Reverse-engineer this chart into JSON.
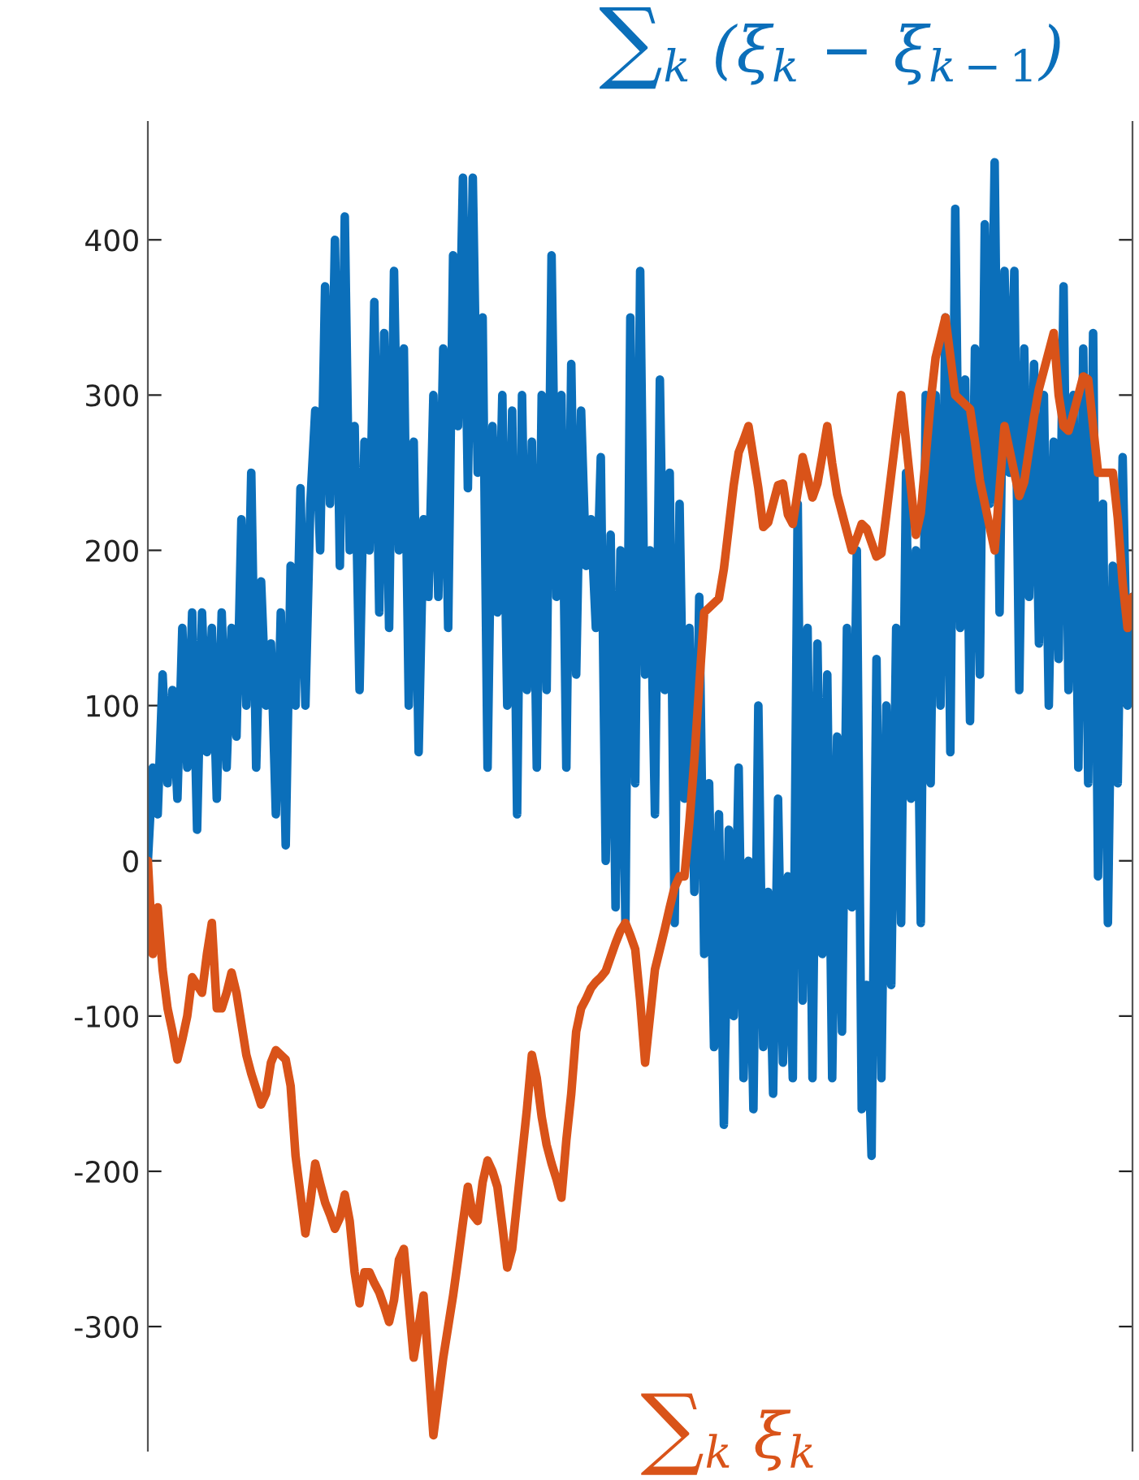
{
  "chart_data": {
    "type": "line",
    "tick_labels": "y",
    "grid": false,
    "legend": false,
    "marker": "none",
    "line_style": "solid",
    "categories": [
      null,
      null,
      null,
      null,
      null,
      null,
      null,
      null,
      null,
      null,
      null,
      null,
      null,
      null,
      null,
      null,
      null,
      null,
      null,
      null,
      null,
      null,
      null,
      null,
      null,
      null,
      null,
      null,
      null,
      null,
      null,
      null,
      null,
      null,
      null,
      null,
      null,
      null,
      null,
      null,
      null,
      null,
      null,
      null,
      null,
      null,
      null,
      null,
      null,
      null,
      null,
      null,
      null,
      null,
      null,
      null,
      null,
      null,
      null,
      null,
      null,
      null,
      null,
      null,
      null,
      null,
      null,
      null,
      null,
      null,
      null,
      null,
      null,
      null,
      null,
      null,
      null,
      null,
      null,
      null,
      null,
      null,
      null,
      null,
      null,
      null,
      null,
      null,
      null,
      null,
      null,
      null,
      null,
      null,
      null,
      null,
      null,
      null,
      null,
      null,
      null,
      null,
      null,
      null,
      null,
      null,
      null,
      null,
      null,
      null,
      null,
      null,
      null,
      null,
      null,
      null,
      null,
      null,
      null,
      null,
      null,
      null,
      null,
      null,
      null,
      null,
      null,
      null,
      null,
      null,
      null,
      null,
      null,
      null,
      null,
      null,
      null,
      null,
      null,
      null,
      null,
      null,
      null,
      null,
      null,
      null,
      null,
      null,
      null,
      null,
      null,
      null,
      null,
      null,
      null,
      null,
      null,
      null,
      null,
      null,
      null,
      null,
      null,
      null,
      null,
      null,
      null,
      null,
      null,
      null,
      null,
      null,
      null,
      null,
      null,
      null,
      null,
      null,
      null,
      null,
      null,
      null,
      null,
      null,
      null,
      null,
      null,
      null,
      null,
      null,
      null,
      null,
      null,
      null,
      null,
      null,
      null,
      null,
      null,
      null,
      null
    ],
    "ylim": [
      -380,
      476
    ],
    "yticks": [
      -300,
      -200,
      -100,
      0,
      100,
      200,
      300,
      400
    ],
    "series": [
      {
        "name": "∑$_{k}$ (ξ$_{k}$ − ξ$_{k−1}$)",
        "color": "#0b6fba",
        "values": [
          0,
          60,
          30,
          120,
          50,
          110,
          40,
          150,
          60,
          160,
          20,
          160,
          70,
          150,
          40,
          160,
          60,
          150,
          80,
          220,
          100,
          250,
          60,
          180,
          100,
          140,
          30,
          160,
          10,
          190,
          100,
          240,
          100,
          230,
          290,
          200,
          370,
          230,
          400,
          190,
          415,
          200,
          280,
          110,
          270,
          200,
          360,
          160,
          340,
          150,
          380,
          200,
          330,
          100,
          270,
          70,
          220,
          170,
          300,
          170,
          330,
          150,
          390,
          280,
          440,
          240,
          440,
          250,
          350,
          60,
          280,
          160,
          300,
          100,
          290,
          30,
          300,
          110,
          270,
          60,
          300,
          110,
          390,
          170,
          300,
          60,
          320,
          120,
          290,
          190,
          220,
          150,
          260,
          0,
          210,
          -30,
          200,
          -40,
          350,
          50,
          380,
          120,
          200,
          30,
          310,
          110,
          250,
          -40,
          230,
          40,
          150,
          -20,
          170,
          -60,
          50,
          -120,
          30,
          -170,
          20,
          -100,
          60,
          -140,
          0,
          -160,
          100,
          -120,
          -20,
          -150,
          40,
          -130,
          -10,
          -140,
          230,
          -90,
          150,
          -140,
          140,
          -60,
          120,
          -140,
          80,
          -110,
          150,
          -30,
          200,
          -160,
          -80,
          -190,
          130,
          -140,
          100,
          -80,
          150,
          -40,
          250,
          40,
          200,
          -40,
          300,
          50,
          300,
          100,
          350,
          70,
          420,
          150,
          310,
          90,
          330,
          120,
          410,
          230,
          450,
          160,
          380,
          250,
          380,
          110,
          330,
          170,
          320,
          140,
          300,
          100,
          270,
          130,
          370,
          110,
          300,
          60,
          330,
          50,
          340,
          -10,
          230,
          -40,
          190,
          50,
          260,
          100,
          170
        ]
      },
      {
        "name": "∑$_{k}$ ξ$_{k}$",
        "color": "#d95319",
        "values": [
          0,
          -60,
          -30,
          -70,
          -95,
          -110,
          -128,
          -115,
          -100,
          -75,
          -80,
          -85,
          -60,
          -40,
          -95,
          -95,
          -85,
          -72,
          -85,
          -105,
          -125,
          -137,
          -147,
          -157,
          -150,
          -130,
          -122,
          -125,
          -128,
          -145,
          -190,
          -215,
          -240,
          -220,
          -195,
          -208,
          -220,
          -228,
          -237,
          -230,
          -215,
          -232,
          -265,
          -285,
          -265,
          -265,
          -272,
          -278,
          -287,
          -297,
          -283,
          -257,
          -250,
          -285,
          -320,
          -300,
          -280,
          -325,
          -370,
          -345,
          -320,
          -300,
          -280,
          -257,
          -233,
          -210,
          -228,
          -232,
          -207,
          -193,
          -200,
          -210,
          -235,
          -262,
          -250,
          -220,
          -190,
          -160,
          -125,
          -140,
          -165,
          -183,
          -195,
          -205,
          -217,
          -180,
          -150,
          -110,
          -95,
          -89,
          -82,
          -78,
          -75,
          -71,
          -62,
          -53,
          -45,
          -40,
          -48,
          -57,
          -90,
          -130,
          -100,
          -70,
          -57,
          -44,
          -30,
          -17,
          -10,
          -10,
          25,
          65,
          113,
          160,
          163,
          166,
          169,
          188,
          215,
          242,
          263,
          271,
          280,
          260,
          240,
          215,
          218,
          230,
          242,
          243,
          223,
          217,
          238,
          260,
          247,
          234,
          243,
          261,
          280,
          256,
          236,
          224,
          212,
          200,
          208,
          217,
          214,
          205,
          196,
          198,
          223,
          249,
          275,
          300,
          270,
          240,
          210,
          224,
          260,
          296,
          324,
          337,
          350,
          325,
          300,
          297,
          294,
          291,
          270,
          245,
          230,
          215,
          200,
          240,
          280,
          265,
          250,
          235,
          244,
          265,
          286,
          304,
          316,
          328,
          340,
          300,
          280,
          277,
          288,
          300,
          312,
          310,
          280,
          250,
          250,
          250,
          250,
          221,
          179,
          150,
          170
        ]
      }
    ]
  }
}
